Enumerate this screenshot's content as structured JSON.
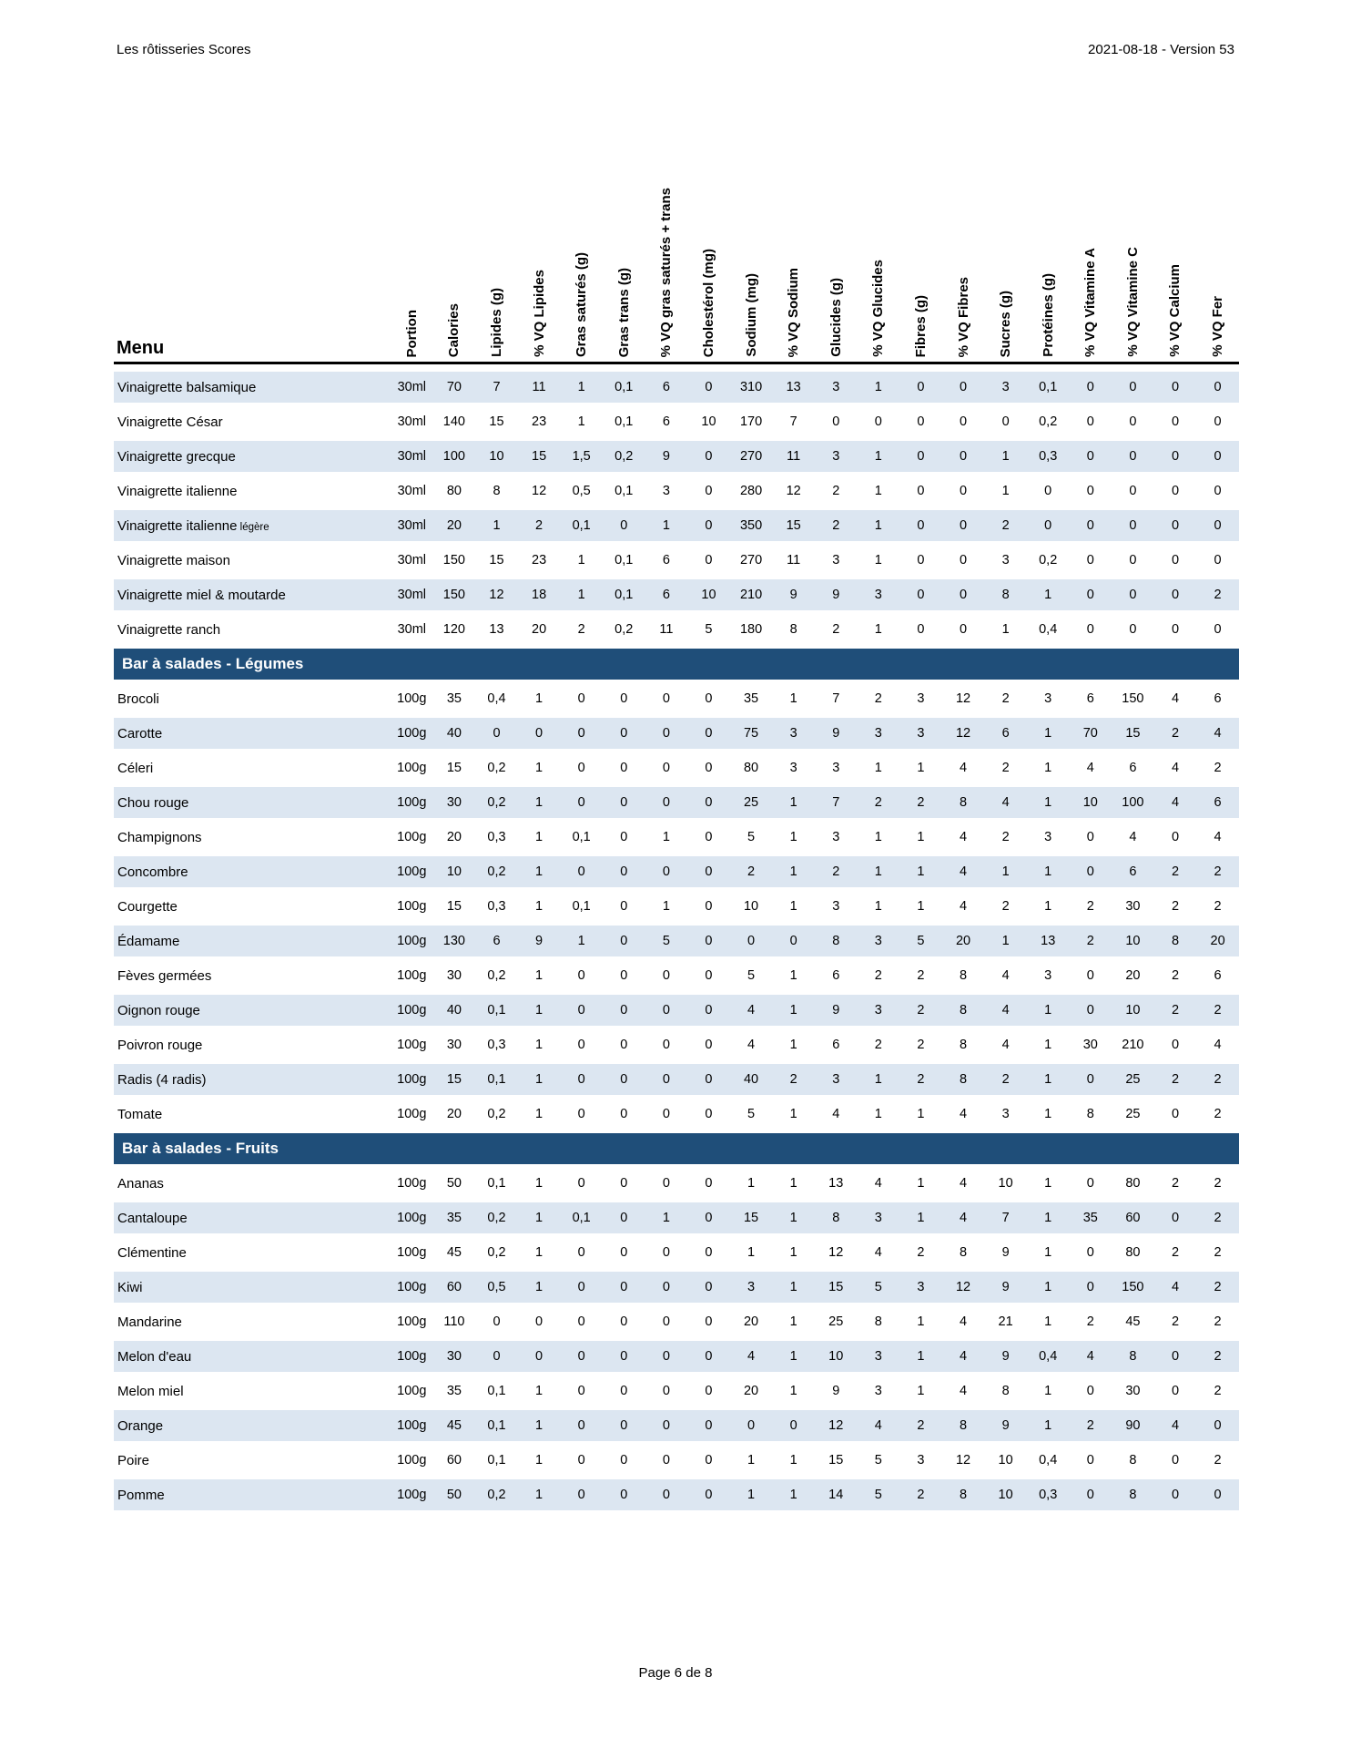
{
  "page": {
    "doc_title": "Les rôtisseries Scores",
    "version": "2021-08-18 - Version 53",
    "footer": "Page 6 de 8"
  },
  "colors": {
    "section_bg": "#1F4E79",
    "section_text": "#FFFFFF",
    "row_alt_bg": "#DCE6F1",
    "header_rule": "#000000"
  },
  "table": {
    "menu_header": "Menu",
    "columns": [
      "Portion",
      "Calories",
      "Lipides (g)",
      "% VQ Lipides",
      "Gras saturés (g)",
      "Gras trans (g)",
      "% VQ gras saturés + trans",
      "Cholestérol (mg)",
      "Sodium (mg)",
      "% VQ Sodium",
      "Glucides (g)",
      "% VQ Glucides",
      "Fibres (g)",
      "% VQ Fibres",
      "Sucres (g)",
      "Protéines (g)",
      "% VQ Vitamine A",
      "% VQ Vitamine C",
      "% VQ Calcium",
      "% VQ Fer"
    ],
    "rows": [
      {
        "type": "item",
        "name": "Vinaigrette balsamique",
        "values": [
          "30ml",
          "70",
          "7",
          "11",
          "1",
          "0,1",
          "6",
          "0",
          "310",
          "13",
          "3",
          "1",
          "0",
          "0",
          "3",
          "0,1",
          "0",
          "0",
          "0",
          "0"
        ]
      },
      {
        "type": "item",
        "name": "Vinaigrette César",
        "values": [
          "30ml",
          "140",
          "15",
          "23",
          "1",
          "0,1",
          "6",
          "10",
          "170",
          "7",
          "0",
          "0",
          "0",
          "0",
          "0",
          "0,2",
          "0",
          "0",
          "0",
          "0"
        ]
      },
      {
        "type": "item",
        "name": "Vinaigrette grecque",
        "values": [
          "30ml",
          "100",
          "10",
          "15",
          "1,5",
          "0,2",
          "9",
          "0",
          "270",
          "11",
          "3",
          "1",
          "0",
          "0",
          "1",
          "0,3",
          "0",
          "0",
          "0",
          "0"
        ]
      },
      {
        "type": "item",
        "name": "Vinaigrette italienne",
        "values": [
          "30ml",
          "80",
          "8",
          "12",
          "0,5",
          "0,1",
          "3",
          "0",
          "280",
          "12",
          "2",
          "1",
          "0",
          "0",
          "1",
          "0",
          "0",
          "0",
          "0",
          "0"
        ]
      },
      {
        "type": "item",
        "name": "Vinaigrette italienne",
        "name_small": "légère",
        "values": [
          "30ml",
          "20",
          "1",
          "2",
          "0,1",
          "0",
          "1",
          "0",
          "350",
          "15",
          "2",
          "1",
          "0",
          "0",
          "2",
          "0",
          "0",
          "0",
          "0",
          "0"
        ]
      },
      {
        "type": "item",
        "name": "Vinaigrette maison",
        "values": [
          "30ml",
          "150",
          "15",
          "23",
          "1",
          "0,1",
          "6",
          "0",
          "270",
          "11",
          "3",
          "1",
          "0",
          "0",
          "3",
          "0,2",
          "0",
          "0",
          "0",
          "0"
        ]
      },
      {
        "type": "item",
        "name": "Vinaigrette miel & moutarde",
        "values": [
          "30ml",
          "150",
          "12",
          "18",
          "1",
          "0,1",
          "6",
          "10",
          "210",
          "9",
          "9",
          "3",
          "0",
          "0",
          "8",
          "1",
          "0",
          "0",
          "0",
          "2"
        ]
      },
      {
        "type": "item",
        "name": "Vinaigrette ranch",
        "values": [
          "30ml",
          "120",
          "13",
          "20",
          "2",
          "0,2",
          "11",
          "5",
          "180",
          "8",
          "2",
          "1",
          "0",
          "0",
          "1",
          "0,4",
          "0",
          "0",
          "0",
          "0"
        ]
      },
      {
        "type": "section",
        "label": "Bar à salades - Légumes"
      },
      {
        "type": "item",
        "name": "Brocoli",
        "values": [
          "100g",
          "35",
          "0,4",
          "1",
          "0",
          "0",
          "0",
          "0",
          "35",
          "1",
          "7",
          "2",
          "3",
          "12",
          "2",
          "3",
          "6",
          "150",
          "4",
          "6"
        ]
      },
      {
        "type": "item",
        "name": "Carotte",
        "values": [
          "100g",
          "40",
          "0",
          "0",
          "0",
          "0",
          "0",
          "0",
          "75",
          "3",
          "9",
          "3",
          "3",
          "12",
          "6",
          "1",
          "70",
          "15",
          "2",
          "4"
        ]
      },
      {
        "type": "item",
        "name": "Céleri",
        "values": [
          "100g",
          "15",
          "0,2",
          "1",
          "0",
          "0",
          "0",
          "0",
          "80",
          "3",
          "3",
          "1",
          "1",
          "4",
          "2",
          "1",
          "4",
          "6",
          "4",
          "2"
        ]
      },
      {
        "type": "item",
        "name": "Chou rouge",
        "values": [
          "100g",
          "30",
          "0,2",
          "1",
          "0",
          "0",
          "0",
          "0",
          "25",
          "1",
          "7",
          "2",
          "2",
          "8",
          "4",
          "1",
          "10",
          "100",
          "4",
          "6"
        ]
      },
      {
        "type": "item",
        "name": "Champignons",
        "values": [
          "100g",
          "20",
          "0,3",
          "1",
          "0,1",
          "0",
          "1",
          "0",
          "5",
          "1",
          "3",
          "1",
          "1",
          "4",
          "2",
          "3",
          "0",
          "4",
          "0",
          "4"
        ]
      },
      {
        "type": "item",
        "name": "Concombre",
        "values": [
          "100g",
          "10",
          "0,2",
          "1",
          "0",
          "0",
          "0",
          "0",
          "2",
          "1",
          "2",
          "1",
          "1",
          "4",
          "1",
          "1",
          "0",
          "6",
          "2",
          "2"
        ]
      },
      {
        "type": "item",
        "name": "Courgette",
        "values": [
          "100g",
          "15",
          "0,3",
          "1",
          "0,1",
          "0",
          "1",
          "0",
          "10",
          "1",
          "3",
          "1",
          "1",
          "4",
          "2",
          "1",
          "2",
          "30",
          "2",
          "2"
        ]
      },
      {
        "type": "item",
        "name": "Édamame",
        "values": [
          "100g",
          "130",
          "6",
          "9",
          "1",
          "0",
          "5",
          "0",
          "0",
          "0",
          "8",
          "3",
          "5",
          "20",
          "1",
          "13",
          "2",
          "10",
          "8",
          "20"
        ]
      },
      {
        "type": "item",
        "name": "Fèves germées",
        "values": [
          "100g",
          "30",
          "0,2",
          "1",
          "0",
          "0",
          "0",
          "0",
          "5",
          "1",
          "6",
          "2",
          "2",
          "8",
          "4",
          "3",
          "0",
          "20",
          "2",
          "6"
        ]
      },
      {
        "type": "item",
        "name": "Oignon rouge",
        "values": [
          "100g",
          "40",
          "0,1",
          "1",
          "0",
          "0",
          "0",
          "0",
          "4",
          "1",
          "9",
          "3",
          "2",
          "8",
          "4",
          "1",
          "0",
          "10",
          "2",
          "2"
        ]
      },
      {
        "type": "item",
        "name": "Poivron rouge",
        "values": [
          "100g",
          "30",
          "0,3",
          "1",
          "0",
          "0",
          "0",
          "0",
          "4",
          "1",
          "6",
          "2",
          "2",
          "8",
          "4",
          "1",
          "30",
          "210",
          "0",
          "4"
        ]
      },
      {
        "type": "item",
        "name": "Radis (4 radis)",
        "values": [
          "100g",
          "15",
          "0,1",
          "1",
          "0",
          "0",
          "0",
          "0",
          "40",
          "2",
          "3",
          "1",
          "2",
          "8",
          "2",
          "1",
          "0",
          "25",
          "2",
          "2"
        ]
      },
      {
        "type": "item",
        "name": "Tomate",
        "values": [
          "100g",
          "20",
          "0,2",
          "1",
          "0",
          "0",
          "0",
          "0",
          "5",
          "1",
          "4",
          "1",
          "1",
          "4",
          "3",
          "1",
          "8",
          "25",
          "0",
          "2"
        ]
      },
      {
        "type": "section",
        "label": "Bar à salades - Fruits"
      },
      {
        "type": "item",
        "name": "Ananas",
        "values": [
          "100g",
          "50",
          "0,1",
          "1",
          "0",
          "0",
          "0",
          "0",
          "1",
          "1",
          "13",
          "4",
          "1",
          "4",
          "10",
          "1",
          "0",
          "80",
          "2",
          "2"
        ]
      },
      {
        "type": "item",
        "name": "Cantaloupe",
        "values": [
          "100g",
          "35",
          "0,2",
          "1",
          "0,1",
          "0",
          "1",
          "0",
          "15",
          "1",
          "8",
          "3",
          "1",
          "4",
          "7",
          "1",
          "35",
          "60",
          "0",
          "2"
        ]
      },
      {
        "type": "item",
        "name": "Clémentine",
        "values": [
          "100g",
          "45",
          "0,2",
          "1",
          "0",
          "0",
          "0",
          "0",
          "1",
          "1",
          "12",
          "4",
          "2",
          "8",
          "9",
          "1",
          "0",
          "80",
          "2",
          "2"
        ]
      },
      {
        "type": "item",
        "name": "Kiwi",
        "values": [
          "100g",
          "60",
          "0,5",
          "1",
          "0",
          "0",
          "0",
          "0",
          "3",
          "1",
          "15",
          "5",
          "3",
          "12",
          "9",
          "1",
          "0",
          "150",
          "4",
          "2"
        ]
      },
      {
        "type": "item",
        "name": "Mandarine",
        "values": [
          "100g",
          "110",
          "0",
          "0",
          "0",
          "0",
          "0",
          "0",
          "20",
          "1",
          "25",
          "8",
          "1",
          "4",
          "21",
          "1",
          "2",
          "45",
          "2",
          "2"
        ]
      },
      {
        "type": "item",
        "name": "Melon d'eau",
        "values": [
          "100g",
          "30",
          "0",
          "0",
          "0",
          "0",
          "0",
          "0",
          "4",
          "1",
          "10",
          "3",
          "1",
          "4",
          "9",
          "0,4",
          "4",
          "8",
          "0",
          "2"
        ]
      },
      {
        "type": "item",
        "name": "Melon miel",
        "values": [
          "100g",
          "35",
          "0,1",
          "1",
          "0",
          "0",
          "0",
          "0",
          "20",
          "1",
          "9",
          "3",
          "1",
          "4",
          "8",
          "1",
          "0",
          "30",
          "0",
          "2"
        ]
      },
      {
        "type": "item",
        "name": "Orange",
        "values": [
          "100g",
          "45",
          "0,1",
          "1",
          "0",
          "0",
          "0",
          "0",
          "0",
          "0",
          "12",
          "4",
          "2",
          "8",
          "9",
          "1",
          "2",
          "90",
          "4",
          "0"
        ]
      },
      {
        "type": "item",
        "name": "Poire",
        "values": [
          "100g",
          "60",
          "0,1",
          "1",
          "0",
          "0",
          "0",
          "0",
          "1",
          "1",
          "15",
          "5",
          "3",
          "12",
          "10",
          "0,4",
          "0",
          "8",
          "0",
          "2"
        ]
      },
      {
        "type": "item",
        "name": "Pomme",
        "values": [
          "100g",
          "50",
          "0,2",
          "1",
          "0",
          "0",
          "0",
          "0",
          "1",
          "1",
          "14",
          "5",
          "2",
          "8",
          "10",
          "0,3",
          "0",
          "8",
          "0",
          "0"
        ]
      }
    ]
  }
}
